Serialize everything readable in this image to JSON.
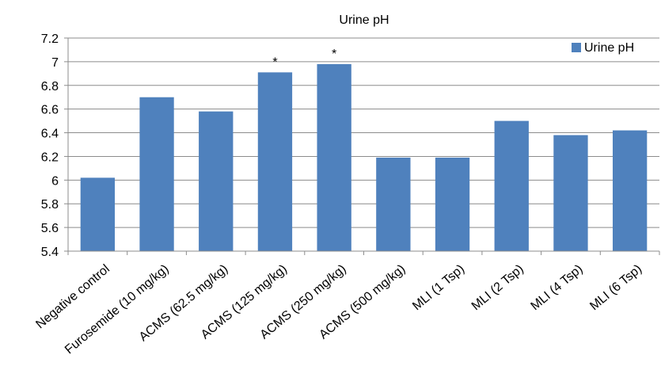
{
  "chart_data": {
    "type": "bar",
    "title": "Urine pH",
    "xlabel": "",
    "ylabel": "",
    "ylim": [
      5.4,
      7.2
    ],
    "yticks": [
      "5.4",
      "5.6",
      "5.8",
      "6",
      "6.2",
      "6.4",
      "6.6",
      "6.8",
      "7",
      "7.2"
    ],
    "grid": "horizontal",
    "legend_position": "top-right",
    "color": "#4f81bd",
    "categories": [
      "Negative control",
      "Furosemide (10 mg/kg)",
      "ACMS (62.5 mg/kg)",
      "ACMS (125 mg/kg)",
      "ACMS (250 mg/kg)",
      "ACMS (500 mg/kg)",
      "MLI (1 Tsp)",
      "MLI (2 Tsp)",
      "MLI (4 Tsp)",
      "MLI (6 Tsp)"
    ],
    "series": [
      {
        "name": "Urine pH",
        "values": [
          6.02,
          6.7,
          6.58,
          6.91,
          6.98,
          6.19,
          6.19,
          6.5,
          6.38,
          6.42
        ]
      }
    ],
    "annotations": [
      "",
      "",
      "",
      "*",
      "*",
      "",
      "",
      "",
      "",
      ""
    ]
  }
}
